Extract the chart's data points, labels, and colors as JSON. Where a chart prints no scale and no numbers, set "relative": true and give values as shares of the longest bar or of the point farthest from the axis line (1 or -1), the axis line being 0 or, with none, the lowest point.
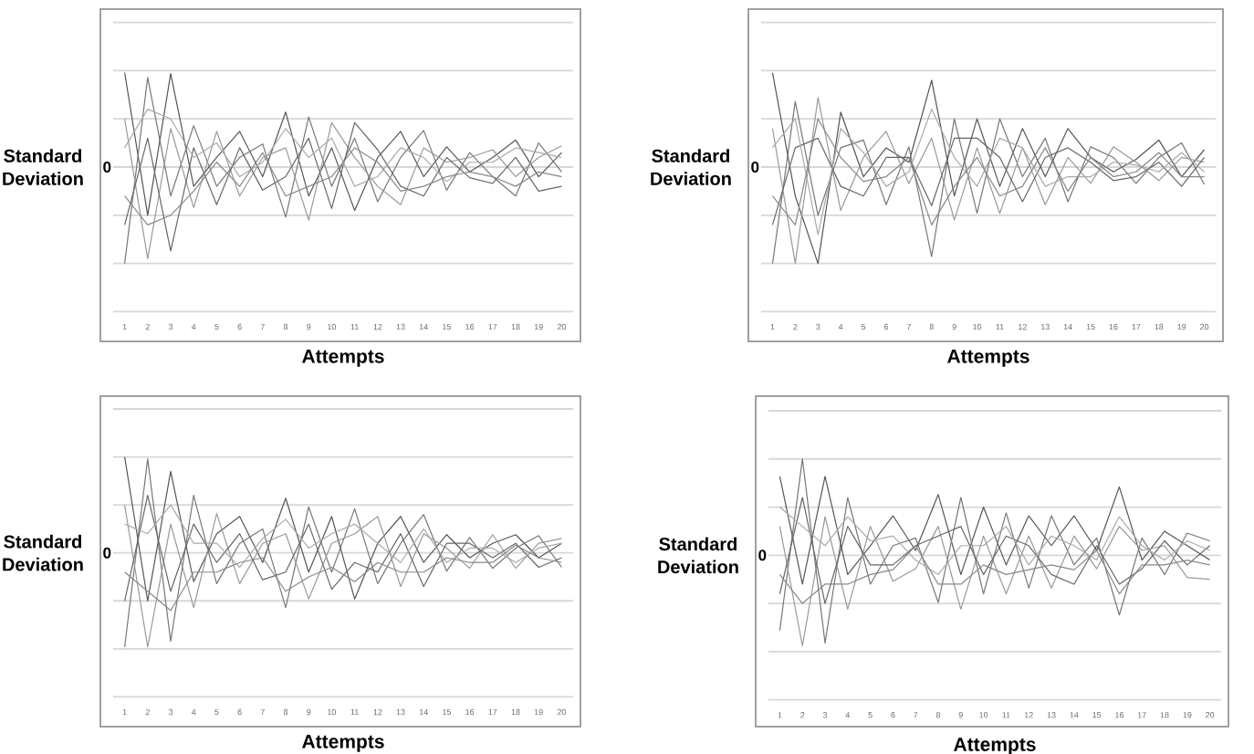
{
  "chart_data": [
    {
      "type": "line",
      "xlabel": "Attempts",
      "ylabel": "Standard Deviation",
      "relative": true,
      "categories": [
        "1",
        "2",
        "3",
        "4",
        "5",
        "6",
        "7",
        "8",
        "9",
        "10",
        "11",
        "12",
        "13",
        "14",
        "15",
        "16",
        "17",
        "18",
        "19",
        "20"
      ],
      "ref_lines": [
        {
          "axis": "y",
          "value": -1.5,
          "color": "#d7d7d7"
        },
        {
          "axis": "y",
          "value": -1,
          "color": "#d7d7d7"
        },
        {
          "axis": "y",
          "value": -0.5,
          "color": "#d7d7d7"
        },
        {
          "axis": "y",
          "value": 0,
          "label": "0",
          "color": "#d7d7d7"
        },
        {
          "axis": "y",
          "value": 0.5,
          "color": "#d7d7d7"
        },
        {
          "axis": "y",
          "value": 1,
          "color": "#d7d7d7"
        },
        {
          "axis": "y",
          "value": 1.5,
          "color": "#d7d7d7"
        }
      ],
      "series": [
        {
          "color": "#555555",
          "values": [
            0.98,
            -0.5,
            0.97,
            -0.2,
            0.1,
            0.37,
            -0.1,
            0.57,
            -0.3,
            0.2,
            -0.45,
            0.1,
            0.37,
            -0.1,
            0.21,
            -0.05,
            0.1,
            0.28,
            -0.1,
            0.15
          ]
        },
        {
          "color": "#777777",
          "values": [
            -1,
            0.93,
            -0.3,
            0.43,
            -0.2,
            0.1,
            0.24,
            -0.52,
            0.52,
            -0.2,
            0.3,
            -0.36,
            0.1,
            0.38,
            -0.24,
            0.15,
            -0.1,
            -0.3,
            0.25,
            -0.05
          ]
        },
        {
          "color": "#999999",
          "values": [
            0.5,
            -0.95,
            0.4,
            -0.42,
            0.37,
            -0.3,
            0.1,
            0.2,
            -0.55,
            0.46,
            0.1,
            -0.2,
            -0.39,
            0.2,
            0.05,
            0.1,
            0.18,
            -0.1,
            0.1,
            0.22
          ]
        },
        {
          "color": "#666666",
          "values": [
            -0.6,
            0.3,
            -0.87,
            0.2,
            -0.39,
            0.2,
            -0.24,
            -0.1,
            0.3,
            -0.43,
            0.46,
            0.18,
            -0.2,
            -0.3,
            0.1,
            -0.11,
            -0.17,
            0.1,
            -0.25,
            -0.2
          ]
        },
        {
          "color": "#aaaaaa",
          "values": [
            0.2,
            0.6,
            0.5,
            0.1,
            0.25,
            -0.1,
            0.05,
            0.4,
            0.1,
            0.3,
            -0.2,
            -0.1,
            0.2,
            0.1,
            -0.15,
            0.05,
            0.05,
            0.2,
            0.15,
            0.1
          ]
        },
        {
          "color": "#888888",
          "values": [
            -0.3,
            -0.6,
            -0.5,
            -0.25,
            0.05,
            -0.2,
            0.15,
            -0.3,
            -0.2,
            -0.1,
            0.2,
            0.05,
            -0.25,
            -0.2,
            -0.1,
            -0.05,
            -0.1,
            -0.2,
            -0.05,
            -0.1
          ]
        }
      ]
    },
    {
      "type": "line",
      "xlabel": "Attempts",
      "ylabel": "Standard Deviation",
      "relative": true,
      "categories": [
        "1",
        "2",
        "3",
        "4",
        "5",
        "6",
        "7",
        "8",
        "9",
        "10",
        "11",
        "12",
        "13",
        "14",
        "15",
        "16",
        "17",
        "18",
        "19",
        "20"
      ],
      "ref_lines": [
        {
          "axis": "y",
          "value": -1.5,
          "color": "#d7d7d7"
        },
        {
          "axis": "y",
          "value": -1,
          "color": "#d7d7d7"
        },
        {
          "axis": "y",
          "value": -0.5,
          "color": "#d7d7d7"
        },
        {
          "axis": "y",
          "value": 0,
          "label": "0",
          "color": "#d7d7d7"
        },
        {
          "axis": "y",
          "value": 0.5,
          "color": "#d7d7d7"
        },
        {
          "axis": "y",
          "value": 1,
          "color": "#d7d7d7"
        },
        {
          "axis": "y",
          "value": 1.5,
          "color": "#d7d7d7"
        }
      ],
      "series": [
        {
          "color": "#555555",
          "values": [
            0.98,
            -0.3,
            -1,
            0.57,
            -0.1,
            0.2,
            0.05,
            0.9,
            -0.3,
            0.5,
            -0.2,
            0.4,
            -0.1,
            0.4,
            0.1,
            -0.05,
            0.08,
            0.28,
            -0.1,
            0.18
          ]
        },
        {
          "color": "#777777",
          "values": [
            -1,
            0.68,
            -0.5,
            0.2,
            0.28,
            -0.39,
            0.21,
            -0.93,
            0.5,
            -0.48,
            0.5,
            -0.1,
            0.3,
            -0.36,
            0.21,
            0.1,
            -0.17,
            0.1,
            0.25,
            -0.18
          ]
        },
        {
          "color": "#999999",
          "values": [
            0.4,
            -1,
            0.72,
            -0.45,
            0.1,
            0.37,
            -0.17,
            0.3,
            -0.55,
            0.2,
            -0.48,
            0.2,
            -0.39,
            0.1,
            -0.17,
            0.21,
            0.05,
            -0.14,
            0.1,
            0.05
          ]
        },
        {
          "color": "#666666",
          "values": [
            -0.6,
            0.2,
            0.3,
            -0.2,
            -0.3,
            0.1,
            0.1,
            -0.4,
            0.3,
            0.3,
            0.1,
            -0.36,
            0.1,
            0.2,
            0.05,
            -0.14,
            -0.1,
            0.05,
            -0.2,
            0.1
          ]
        },
        {
          "color": "#aaaaaa",
          "values": [
            0.2,
            0.5,
            -0.7,
            0.4,
            0.15,
            -0.2,
            -0.05,
            0.6,
            0.1,
            -0.2,
            0.3,
            0.2,
            -0.2,
            -0.1,
            -0.1,
            0.05,
            0.02,
            -0.05,
            0.15,
            -0.05
          ]
        },
        {
          "color": "#888888",
          "values": [
            -0.3,
            -0.6,
            0.5,
            0.1,
            -0.15,
            -0.1,
            0.1,
            -0.6,
            -0.2,
            0.1,
            -0.3,
            -0.2,
            0.2,
            -0.25,
            0.1,
            -0.1,
            -0.05,
            0.15,
            -0.1,
            -0.1
          ]
        }
      ]
    },
    {
      "type": "line",
      "xlabel": "Attempts",
      "ylabel": "Standard Deviation",
      "relative": true,
      "categories": [
        "1",
        "2",
        "3",
        "4",
        "5",
        "6",
        "7",
        "8",
        "9",
        "10",
        "11",
        "12",
        "13",
        "14",
        "15",
        "16",
        "17",
        "18",
        "19",
        "20"
      ],
      "ref_lines": [
        {
          "axis": "y",
          "value": -1.5,
          "color": "#d7d7d7"
        },
        {
          "axis": "y",
          "value": -1,
          "color": "#d7d7d7"
        },
        {
          "axis": "y",
          "value": -0.5,
          "color": "#d7d7d7"
        },
        {
          "axis": "y",
          "value": 0,
          "label": "0",
          "color": "#d7d7d7"
        },
        {
          "axis": "y",
          "value": 0.5,
          "color": "#d7d7d7"
        },
        {
          "axis": "y",
          "value": 1,
          "color": "#d7d7d7"
        },
        {
          "axis": "y",
          "value": 1.5,
          "color": "#d7d7d7"
        }
      ],
      "series": [
        {
          "color": "#555555",
          "values": [
            1,
            -0.5,
            0.85,
            -0.3,
            0.2,
            0.38,
            -0.1,
            0.57,
            -0.2,
            0.38,
            -0.48,
            0.1,
            0.38,
            -0.1,
            0.19,
            -0.05,
            0.1,
            0.19,
            -0.05,
            0.1
          ]
        },
        {
          "color": "#777777",
          "values": [
            -0.98,
            0.98,
            -0.92,
            0.6,
            -0.32,
            0.1,
            0.25,
            -0.57,
            0.48,
            -0.2,
            0.46,
            -0.32,
            0.1,
            0.4,
            -0.19,
            0.16,
            -0.16,
            0.05,
            0.18,
            -0.15
          ]
        },
        {
          "color": "#999999",
          "values": [
            0.5,
            -0.98,
            0.3,
            -0.57,
            0.41,
            -0.32,
            0.1,
            0.2,
            -0.48,
            0.1,
            0.2,
            0.38,
            -0.35,
            0.2,
            0.05,
            -0.16,
            0.19,
            -0.16,
            0.1,
            0.15
          ]
        },
        {
          "color": "#666666",
          "values": [
            -0.5,
            0.6,
            -0.4,
            0.3,
            -0.1,
            0.2,
            -0.28,
            -0.2,
            0.3,
            -0.38,
            -0.1,
            -0.2,
            0.2,
            -0.35,
            0.1,
            0.1,
            -0.05,
            0.1,
            -0.15,
            -0.05
          ]
        },
        {
          "color": "#aaaaaa",
          "values": [
            0.3,
            0.2,
            0.5,
            0.1,
            0.1,
            -0.15,
            0.15,
            0.35,
            0.05,
            0.2,
            0.3,
            0.1,
            -0.1,
            0.25,
            -0.1,
            0.05,
            0.05,
            -0.1,
            0.05,
            0.1
          ]
        },
        {
          "color": "#888888",
          "values": [
            -0.2,
            -0.4,
            -0.6,
            -0.2,
            -0.2,
            -0.1,
            -0.05,
            -0.4,
            -0.25,
            -0.15,
            -0.3,
            -0.1,
            -0.2,
            -0.2,
            -0.05,
            -0.1,
            -0.1,
            0.08,
            -0.05,
            -0.1
          ]
        }
      ]
    },
    {
      "type": "line",
      "xlabel": "Attempts",
      "ylabel": "Standard Deviation",
      "relative": true,
      "categories": [
        "1",
        "2",
        "3",
        "4",
        "5",
        "6",
        "7",
        "8",
        "9",
        "10",
        "11",
        "12",
        "13",
        "14",
        "15",
        "16",
        "17",
        "18",
        "19",
        "20"
      ],
      "ref_lines": [
        {
          "axis": "y",
          "value": -1.5,
          "color": "#d7d7d7"
        },
        {
          "axis": "y",
          "value": -1,
          "color": "#d7d7d7"
        },
        {
          "axis": "y",
          "value": -0.5,
          "color": "#d7d7d7"
        },
        {
          "axis": "y",
          "value": 0,
          "label": "0",
          "color": "#d7d7d7"
        },
        {
          "axis": "y",
          "value": 0.5,
          "color": "#d7d7d7"
        },
        {
          "axis": "y",
          "value": 1,
          "color": "#d7d7d7"
        },
        {
          "axis": "y",
          "value": 1.5,
          "color": "#d7d7d7"
        }
      ],
      "series": [
        {
          "color": "#555555",
          "values": [
            0.82,
            -0.3,
            0.82,
            -0.2,
            0.1,
            0.41,
            0.05,
            0.63,
            -0.2,
            0.5,
            -0.1,
            0.41,
            0.1,
            0.41,
            0.05,
            0.71,
            -0.05,
            0.25,
            0.1,
            -0.05
          ]
        },
        {
          "color": "#777777",
          "values": [
            -0.78,
            1,
            -0.91,
            0.6,
            -0.3,
            0.1,
            0.18,
            -0.49,
            0.6,
            -0.4,
            0.44,
            -0.34,
            0.41,
            -0.1,
            0.18,
            -0.62,
            0.18,
            -0.2,
            0.23,
            0.15
          ]
        },
        {
          "color": "#999999",
          "values": [
            0.3,
            -0.94,
            0.4,
            -0.56,
            0.3,
            -0.27,
            -0.14,
            0.3,
            -0.56,
            0.2,
            -0.4,
            0.2,
            -0.34,
            0.2,
            -0.14,
            0.3,
            0.05,
            0.1,
            -0.23,
            -0.25
          ]
        },
        {
          "color": "#666666",
          "values": [
            -0.4,
            0.6,
            -0.5,
            0.3,
            -0.1,
            -0.1,
            0.1,
            0.2,
            0.3,
            -0.2,
            0.2,
            0.1,
            -0.2,
            -0.3,
            0.1,
            -0.3,
            -0.14,
            0.15,
            -0.1,
            0.1
          ]
        },
        {
          "color": "#aaaaaa",
          "values": [
            0.5,
            0.3,
            0.1,
            0.4,
            0.15,
            0.2,
            -0.05,
            -0.2,
            0.1,
            0.1,
            0.3,
            -0.1,
            0.2,
            0.1,
            -0.05,
            0.4,
            0.1,
            -0.05,
            0.15,
            0.05
          ]
        },
        {
          "color": "#888888",
          "values": [
            -0.2,
            -0.5,
            -0.3,
            -0.3,
            -0.2,
            -0.15,
            0.1,
            -0.3,
            -0.3,
            -0.1,
            -0.2,
            -0.15,
            -0.1,
            -0.15,
            0.05,
            -0.4,
            -0.1,
            -0.1,
            -0.05,
            -0.1
          ]
        }
      ]
    }
  ]
}
